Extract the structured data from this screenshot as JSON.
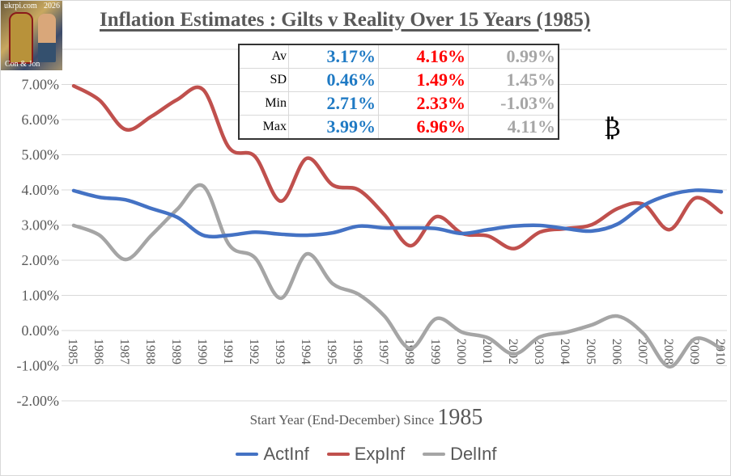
{
  "logo": {
    "site": "ukrpi.com",
    "year": "2026",
    "credit": "Con & Jon"
  },
  "symbol": "₿",
  "stats_table": {
    "rows": [
      {
        "label": "Av",
        "act": "3.17%",
        "exp": "4.16%",
        "del": "0.99%"
      },
      {
        "label": "SD",
        "act": "0.46%",
        "exp": "1.49%",
        "del": "1.45%"
      },
      {
        "label": "Min",
        "act": "2.71%",
        "exp": "2.33%",
        "del": "-1.03%"
      },
      {
        "label": "Max",
        "act": "3.99%",
        "exp": "6.96%",
        "del": "4.11%"
      }
    ]
  },
  "chart_data": {
    "type": "line",
    "title": "Inflation Estimates : Gilts v Reality Over 15 Years (1985)",
    "xlabel": "Start Year (End-December) Since",
    "xlabel_year": "1985",
    "ylabel": "",
    "ylim": [
      -2,
      8
    ],
    "yticks": [
      "-2.00%",
      "-1.00%",
      "0.00%",
      "1.00%",
      "2.00%",
      "3.00%",
      "4.00%",
      "5.00%",
      "6.00%",
      "7.00%"
    ],
    "grid": true,
    "smooth": true,
    "legend_position": "bottom",
    "x": [
      "1985",
      "1986",
      "1987",
      "1988",
      "1989",
      "1990",
      "1991",
      "1992",
      "1993",
      "1994",
      "1995",
      "1996",
      "1997",
      "1998",
      "1999",
      "2000",
      "2001",
      "2002",
      "2003",
      "2004",
      "2005",
      "2006",
      "2007",
      "2008",
      "2009",
      "2010"
    ],
    "series": [
      {
        "name": "ActInf",
        "color": "#4472c4",
        "values": [
          3.98,
          3.79,
          3.72,
          3.47,
          3.22,
          2.71,
          2.71,
          2.8,
          2.74,
          2.71,
          2.78,
          2.97,
          2.92,
          2.92,
          2.9,
          2.76,
          2.87,
          2.97,
          2.99,
          2.9,
          2.83,
          3.03,
          3.56,
          3.86,
          3.99,
          3.95
        ]
      },
      {
        "name": "ExpInf",
        "color": "#c0504d",
        "values": [
          6.96,
          6.55,
          5.72,
          6.09,
          6.57,
          6.85,
          5.2,
          4.95,
          3.68,
          4.9,
          4.14,
          4.0,
          3.29,
          2.41,
          3.24,
          2.76,
          2.69,
          2.33,
          2.8,
          2.9,
          3.01,
          3.47,
          3.59,
          2.87,
          3.77,
          3.36
        ]
      },
      {
        "name": "DelInf",
        "color": "#a5a5a5",
        "values": [
          2.99,
          2.71,
          2.02,
          2.71,
          3.45,
          4.11,
          2.44,
          2.07,
          0.92,
          2.18,
          1.33,
          1.03,
          0.41,
          -0.51,
          0.34,
          -0.05,
          -0.21,
          -0.67,
          -0.18,
          -0.05,
          0.16,
          0.41,
          -0.09,
          -1.03,
          -0.23,
          -0.51
        ]
      }
    ]
  },
  "stat_colors": {
    "act": "#1f7ac4",
    "exp": "#ff0000",
    "del": "#a6a6a6"
  }
}
